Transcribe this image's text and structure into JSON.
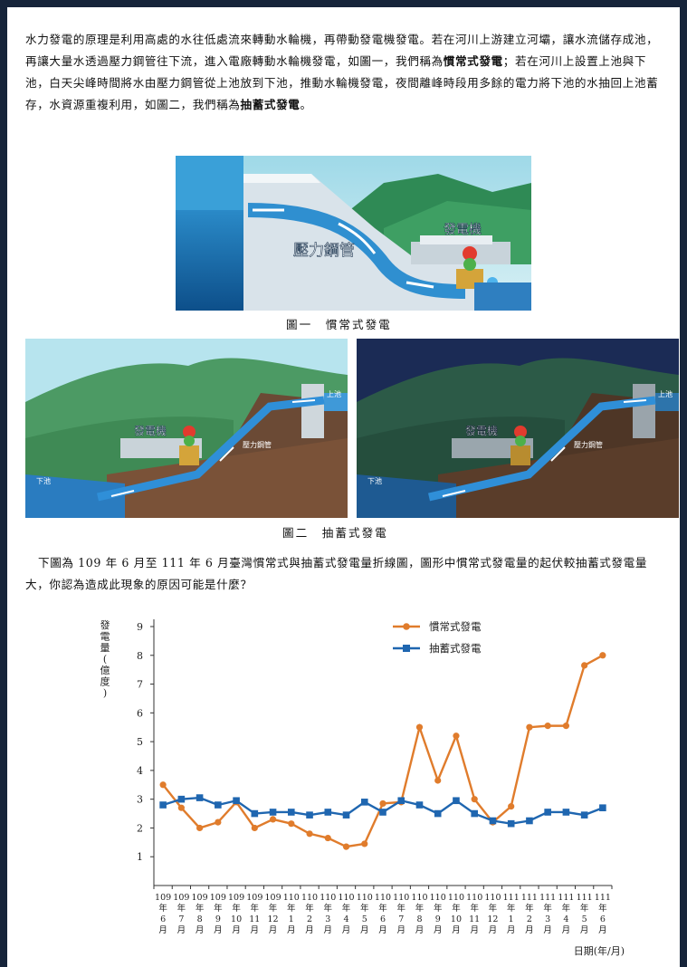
{
  "intro": {
    "part1": "水力發電的原理是利用高處的水往低處流來轉動水輪機，再帶動發電機發電。若在河川上游建立河壩，讓水流儲存成池，再讓大量水透過壓力鋼管往下流，進入電廠轉動水輪機發電，如圖一，我們稱為",
    "term1": "慣常式發電",
    "part2": "；若在河川上設置上池與下池，白天尖峰時間將水由壓力鋼管從上池放到下池，推動水輪機發電，夜間離峰時段用多餘的電力將下池的水抽回上池蓄存，水資源重複利用，如圖二，我們稱為",
    "term2": "抽蓄式發電",
    "part3": "。"
  },
  "figure1": {
    "caption": "圖一　慣常式發電",
    "label_pipe": "壓力鋼管",
    "label_generator": "發電機"
  },
  "figure2": {
    "caption": "圖二　抽蓄式發電",
    "day_labels": {
      "generator": "發電機",
      "pipe": "壓力鋼管",
      "upper": "上池",
      "lower": "下池"
    },
    "night_labels": {
      "generator": "發電機",
      "pipe": "壓力鋼管",
      "upper": "上池",
      "lower": "下池"
    }
  },
  "question": "下圖為 109 年 6 月至 111 年 6 月臺灣慣常式與抽蓄式發電量折線圖，圖形中慣常式發電量的起伏較抽蓄式發電量大，你認為造成此現象的原因可能是什麼？",
  "colors": {
    "conventional": "#e07c2c",
    "pumped": "#1f66b0",
    "frame": "#16243a"
  },
  "chart_data": {
    "type": "line",
    "ylabel": "發電量(億度)",
    "xlabel": "日期(年/月)",
    "ylim": [
      0,
      9
    ],
    "yticks": [
      "1",
      "2",
      "3",
      "4",
      "5",
      "6",
      "7",
      "8",
      "9"
    ],
    "grid": false,
    "legend_position": "top-right",
    "categories": [
      [
        "109",
        "年",
        "6",
        "月"
      ],
      [
        "109",
        "年",
        "7",
        "月"
      ],
      [
        "109",
        "年",
        "8",
        "月"
      ],
      [
        "109",
        "年",
        "9",
        "月"
      ],
      [
        "109",
        "年",
        "10",
        "月"
      ],
      [
        "109",
        "年",
        "11",
        "月"
      ],
      [
        "109",
        "年",
        "12",
        "月"
      ],
      [
        "110",
        "年",
        "1",
        "月"
      ],
      [
        "110",
        "年",
        "2",
        "月"
      ],
      [
        "110",
        "年",
        "3",
        "月"
      ],
      [
        "110",
        "年",
        "4",
        "月"
      ],
      [
        "110",
        "年",
        "5",
        "月"
      ],
      [
        "110",
        "年",
        "6",
        "月"
      ],
      [
        "110",
        "年",
        "7",
        "月"
      ],
      [
        "110",
        "年",
        "8",
        "月"
      ],
      [
        "110",
        "年",
        "9",
        "月"
      ],
      [
        "110",
        "年",
        "10",
        "月"
      ],
      [
        "110",
        "年",
        "11",
        "月"
      ],
      [
        "110",
        "年",
        "12",
        "月"
      ],
      [
        "111",
        "年",
        "1",
        "月"
      ],
      [
        "111",
        "年",
        "2",
        "月"
      ],
      [
        "111",
        "年",
        "3",
        "月"
      ],
      [
        "111",
        "年",
        "4",
        "月"
      ],
      [
        "111",
        "年",
        "5",
        "月"
      ],
      [
        "111",
        "年",
        "6",
        "月"
      ]
    ],
    "series": [
      {
        "name": "慣常式發電",
        "marker": "circle",
        "values": [
          3.5,
          2.7,
          2.0,
          2.2,
          2.9,
          2.0,
          2.3,
          2.15,
          1.8,
          1.65,
          1.35,
          1.45,
          2.85,
          2.9,
          5.5,
          3.65,
          5.2,
          3.0,
          2.2,
          2.75,
          5.5,
          5.55,
          5.55,
          7.65,
          8.0
        ]
      },
      {
        "name": "抽蓄式發電",
        "marker": "square",
        "values": [
          2.8,
          3.0,
          3.05,
          2.8,
          2.95,
          2.5,
          2.55,
          2.55,
          2.45,
          2.55,
          2.45,
          2.9,
          2.55,
          2.95,
          2.8,
          2.5,
          2.95,
          2.5,
          2.25,
          2.15,
          2.25,
          2.55,
          2.55,
          2.45,
          2.7
        ]
      }
    ]
  }
}
